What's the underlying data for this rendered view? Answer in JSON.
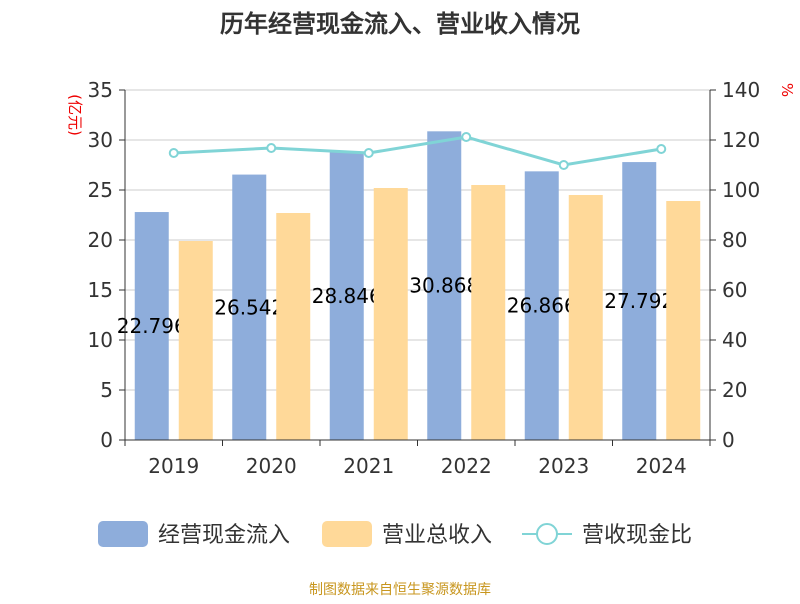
{
  "chart_data": {
    "type": "bar",
    "title": "历年经营现金流入、营业收入情况",
    "categories": [
      "2019",
      "2020",
      "2021",
      "2022",
      "2023",
      "2024"
    ],
    "y_left": {
      "label": "(亿元)",
      "range": [
        0,
        35
      ],
      "ticks": [
        0,
        5,
        10,
        15,
        20,
        25,
        30,
        35
      ]
    },
    "y_right": {
      "label": "%",
      "range": [
        0,
        140
      ],
      "ticks": [
        0,
        20,
        40,
        60,
        80,
        100,
        120,
        140
      ]
    },
    "grid": true,
    "legend_position": "bottom",
    "series": [
      {
        "name": "经营现金流入",
        "type": "bar",
        "axis": "left",
        "color": "#8eaddb",
        "values": [
          22.796,
          26.542,
          28.846,
          30.868,
          26.866,
          27.792
        ],
        "data_labels": true
      },
      {
        "name": "营业总收入",
        "type": "bar",
        "axis": "left",
        "color": "#ffd999",
        "values": [
          19.9,
          22.7,
          25.2,
          25.5,
          24.5,
          23.9
        ]
      },
      {
        "name": "营收现金比",
        "type": "line",
        "axis": "right",
        "color": "#80d4d6",
        "values": [
          114.8,
          116.8,
          114.8,
          121.2,
          110.0,
          116.4
        ]
      }
    ]
  },
  "source": "制图数据来自恒生聚源数据库"
}
